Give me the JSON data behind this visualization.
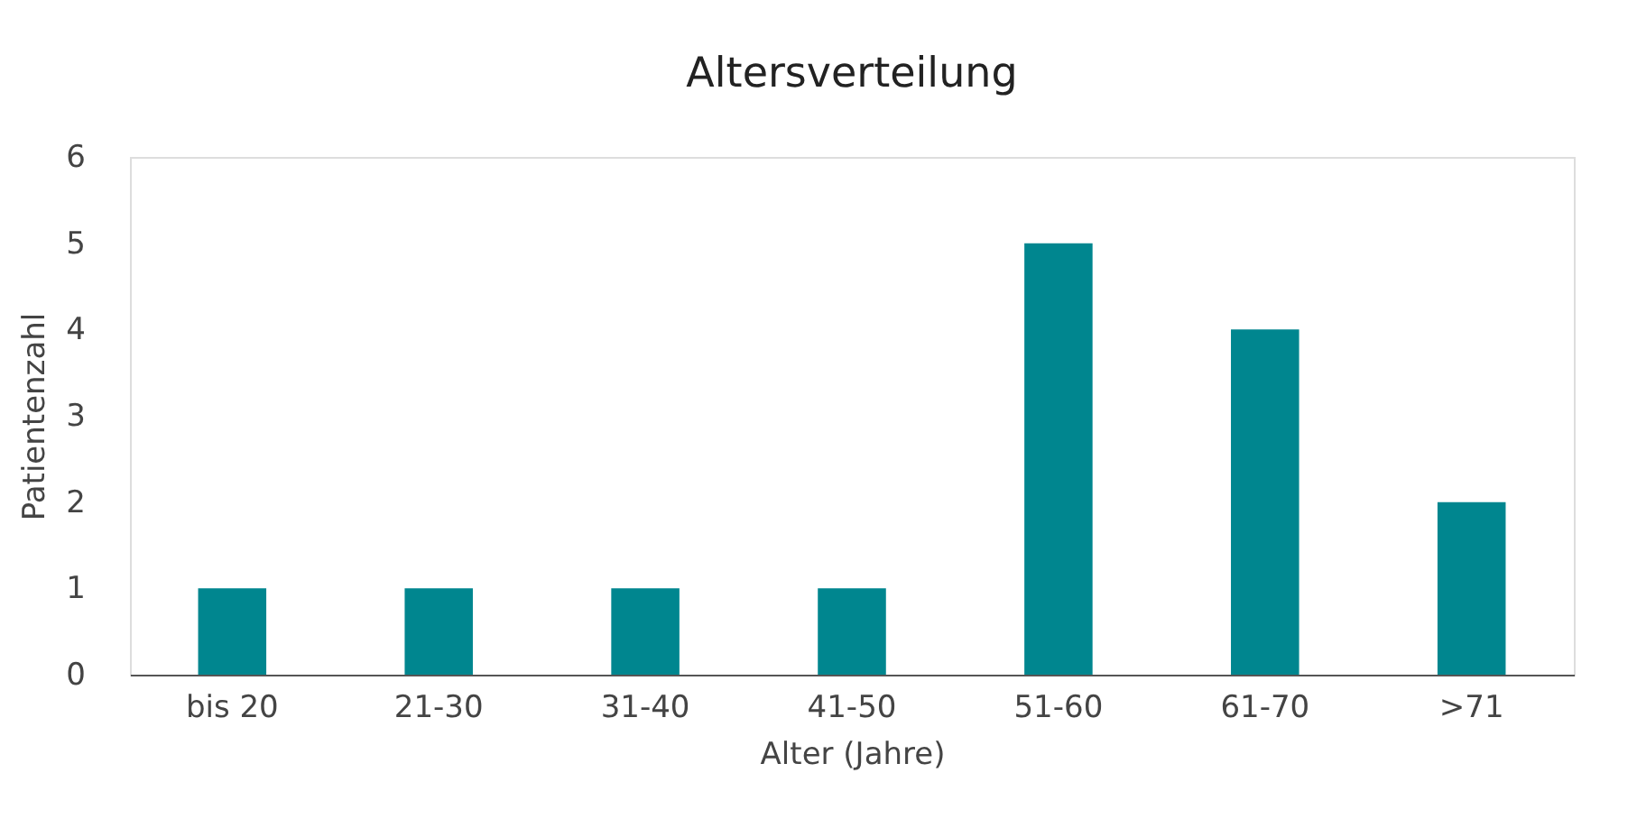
{
  "chart_data": {
    "type": "bar",
    "title": "Altersverteilung",
    "xlabel": "Alter (Jahre)",
    "ylabel": "Patientenzahl",
    "categories": [
      "bis 20",
      "21-30",
      "31-40",
      "41-50",
      "51-60",
      "61-70",
      ">71"
    ],
    "values": [
      1,
      1,
      1,
      1,
      5,
      4,
      2
    ],
    "color": "#00868f",
    "ylim": [
      0,
      6
    ],
    "yticks": [
      0,
      1,
      2,
      3,
      4,
      5,
      6
    ],
    "grid": false
  }
}
